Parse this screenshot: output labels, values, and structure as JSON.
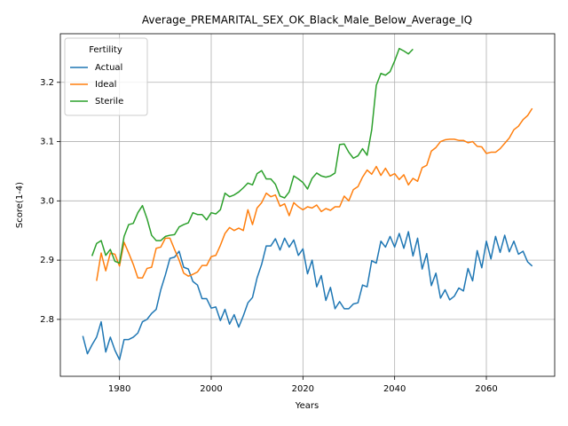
{
  "chart_data": {
    "type": "line",
    "title": "Average_PREMARITAL_SEX_OK_Black_Male_Below_Average_IQ",
    "xlabel": "Years",
    "ylabel": "Score(1-4)",
    "legend_title": "Fertility",
    "legend": "upper left",
    "grid": true,
    "x": [
      1972,
      1973,
      1974,
      1975,
      1976,
      1977,
      1978,
      1979,
      1980,
      1981,
      1982,
      1983,
      1984,
      1985,
      1986,
      1987,
      1988,
      1989,
      1990,
      1991,
      1992,
      1993,
      1994,
      1995,
      1996,
      1997,
      1998,
      1999,
      2000,
      2001,
      2002,
      2003,
      2004,
      2005,
      2006,
      2007,
      2008,
      2009,
      2010,
      2011,
      2012,
      2013,
      2014,
      2015,
      2016,
      2017,
      2018,
      2019,
      2020,
      2021,
      2022,
      2023,
      2024,
      2025,
      2026,
      2027,
      2028,
      2029,
      2030,
      2031,
      2032,
      2033,
      2034,
      2035,
      2036,
      2037,
      2038,
      2039,
      2040,
      2041,
      2042,
      2043,
      2044,
      2045,
      2046,
      2047,
      2048,
      2049,
      2050,
      2051,
      2052,
      2053,
      2054,
      2055,
      2056,
      2057,
      2058,
      2059,
      2060,
      2061,
      2062,
      2063,
      2064,
      2065,
      2066,
      2067,
      2068,
      2069,
      2070
    ],
    "series": [
      {
        "name": "Actual",
        "color": "#1f77b4",
        "values": [
          2.772,
          2.742,
          2.757,
          2.77,
          2.796,
          2.745,
          2.77,
          2.748,
          2.732,
          2.766,
          2.766,
          2.77,
          2.777,
          2.796,
          2.8,
          2.81,
          2.817,
          2.85,
          2.875,
          2.903,
          2.905,
          2.915,
          2.888,
          2.885,
          2.864,
          2.858,
          2.835,
          2.835,
          2.819,
          2.821,
          2.798,
          2.817,
          2.792,
          2.808,
          2.787,
          2.806,
          2.828,
          2.837,
          2.87,
          2.893,
          2.924,
          2.924,
          2.936,
          2.917,
          2.937,
          2.922,
          2.934,
          2.908,
          2.919,
          2.877,
          2.9,
          2.855,
          2.874,
          2.832,
          2.854,
          2.818,
          2.83,
          2.818,
          2.818,
          2.826,
          2.828,
          2.858,
          2.855,
          2.899,
          2.895,
          2.932,
          2.922,
          2.94,
          2.922,
          2.945,
          2.92,
          2.948,
          2.907,
          2.937,
          2.885,
          2.911,
          2.857,
          2.878,
          2.836,
          2.85,
          2.833,
          2.839,
          2.853,
          2.848,
          2.886,
          2.865,
          2.916,
          2.887,
          2.932,
          2.902,
          2.94,
          2.913,
          2.942,
          2.914,
          2.932,
          2.91,
          2.915,
          2.897,
          2.89
        ]
      },
      {
        "name": "Ideal",
        "color": "#ff7f0e",
        "values": [
          null,
          null,
          null,
          2.865,
          2.912,
          2.882,
          2.912,
          2.91,
          2.89,
          2.93,
          2.912,
          2.893,
          2.87,
          2.87,
          2.886,
          2.888,
          2.92,
          2.922,
          2.937,
          2.937,
          2.918,
          2.9,
          2.878,
          2.873,
          2.876,
          2.88,
          2.891,
          2.891,
          2.906,
          2.908,
          2.925,
          2.945,
          2.955,
          2.95,
          2.954,
          2.95,
          2.985,
          2.96,
          2.988,
          2.997,
          3.013,
          3.007,
          3.01,
          2.991,
          2.995,
          2.975,
          2.997,
          2.99,
          2.985,
          2.99,
          2.988,
          2.993,
          2.982,
          2.987,
          2.984,
          2.99,
          2.99,
          3.008,
          3.0,
          3.019,
          3.024,
          3.04,
          3.052,
          3.045,
          3.058,
          3.043,
          3.055,
          3.042,
          3.046,
          3.036,
          3.044,
          3.027,
          3.038,
          3.033,
          3.056,
          3.06,
          3.084,
          3.09,
          3.1,
          3.103,
          3.104,
          3.104,
          3.102,
          3.102,
          3.098,
          3.1,
          3.092,
          3.091,
          3.08,
          3.082,
          3.082,
          3.088,
          3.097,
          3.106,
          3.12,
          3.126,
          3.137,
          3.144,
          3.156
        ]
      },
      {
        "name": "Sterile",
        "color": "#2ca02c",
        "values": [
          null,
          null,
          2.907,
          2.928,
          2.933,
          2.908,
          2.918,
          2.898,
          2.895,
          2.94,
          2.96,
          2.962,
          2.98,
          2.992,
          2.97,
          2.942,
          2.933,
          2.933,
          2.94,
          2.942,
          2.943,
          2.956,
          2.96,
          2.963,
          2.98,
          2.977,
          2.977,
          2.968,
          2.98,
          2.978,
          2.985,
          3.013,
          3.007,
          3.01,
          3.015,
          3.022,
          3.03,
          3.027,
          3.046,
          3.051,
          3.037,
          3.037,
          3.028,
          3.008,
          3.005,
          3.015,
          3.042,
          3.037,
          3.031,
          3.02,
          3.038,
          3.047,
          3.042,
          3.04,
          3.042,
          3.047,
          3.095,
          3.096,
          3.082,
          3.072,
          3.076,
          3.088,
          3.077,
          3.12,
          3.195,
          3.215,
          3.212,
          3.218,
          3.236,
          3.257,
          3.253,
          3.248,
          3.256,
          null,
          null,
          null,
          null,
          null,
          null,
          null,
          null,
          null,
          null,
          null,
          null,
          null,
          null,
          null,
          null,
          null,
          null,
          null,
          null,
          null,
          null,
          null,
          null,
          null,
          null
        ]
      }
    ],
    "xlim": [
      1967.1,
      2074.9
    ],
    "xticks": [
      1980,
      2000,
      2020,
      2040,
      2060
    ],
    "ylim": [
      2.704,
      3.282
    ],
    "yticks": [
      2.8,
      2.9,
      {
        "value": 3,
        "label": "3.0"
      },
      3.1,
      3.2
    ]
  }
}
